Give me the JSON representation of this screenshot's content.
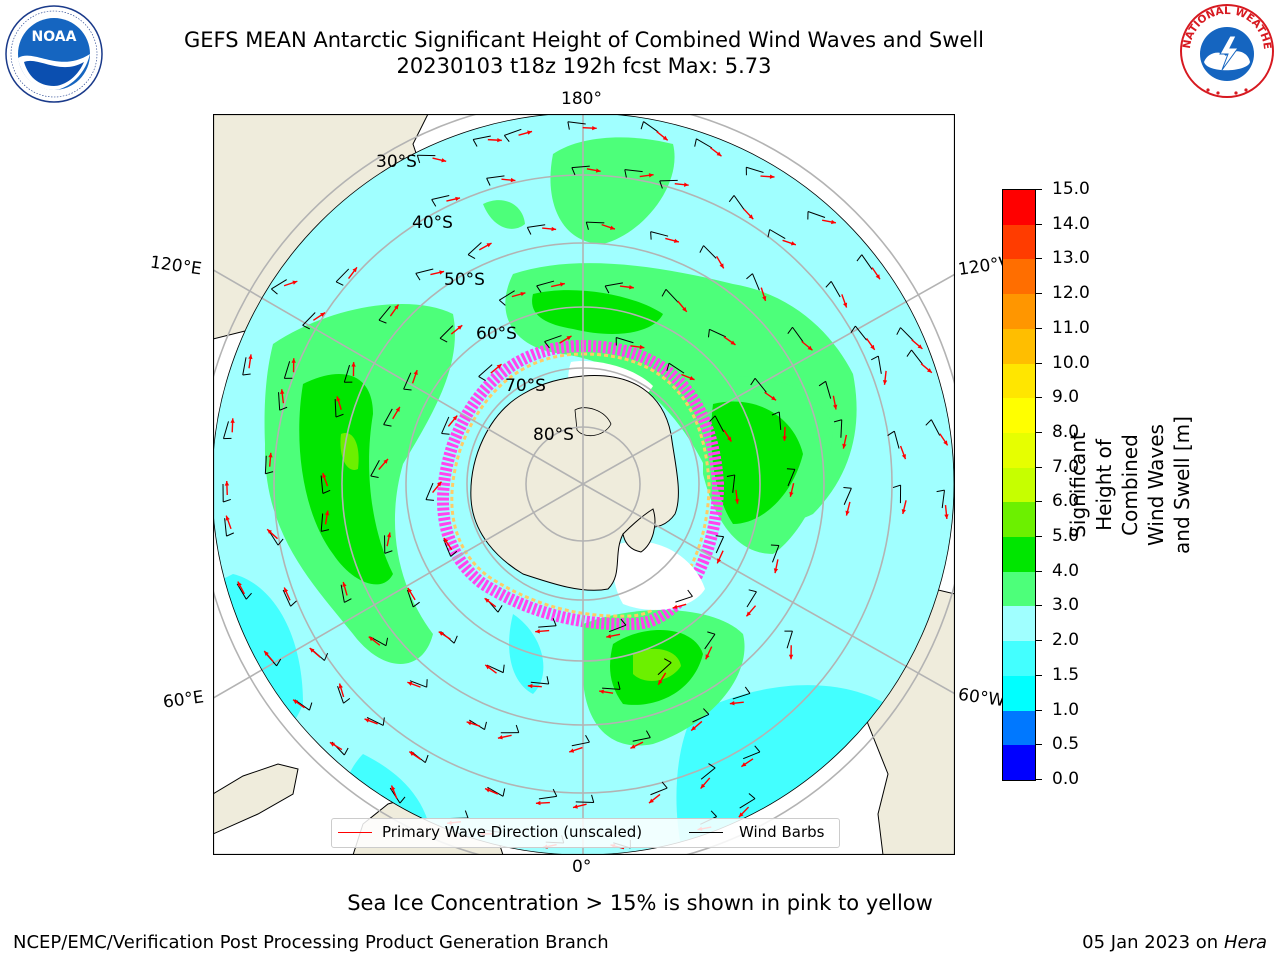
{
  "title": {
    "line1": "GEFS MEAN Antarctic Significant Height of Combined Wind Waves and Swell",
    "line2": "20230103 t18z 192h fcst   Max: 5.73"
  },
  "map": {
    "projection": "south polar stereographic",
    "longitude_labels": {
      "top": "180°",
      "bottom": "0°",
      "upper_left": "120°E",
      "upper_right": "120°W",
      "lower_left": "60°E",
      "lower_right": "60°W"
    },
    "latitude_labels": [
      "30°S",
      "40°S",
      "50°S",
      "60°S",
      "70°S",
      "80°S"
    ],
    "legend": {
      "wave_direction": "Primary Wave Direction (unscaled)",
      "wind_barbs": "Wind Barbs"
    },
    "colors": {
      "land": "#efecdc",
      "graticule": "#b3b3b3",
      "wave_arrow": "#ff0000",
      "wind_barb": "#000000"
    }
  },
  "colorbar": {
    "label_line1": "Significant Height of Combined",
    "label_line2": "Wind Waves and Swell [m]",
    "levels": [
      "0.0",
      "0.5",
      "1.0",
      "1.5",
      "2.0",
      "3.0",
      "4.0",
      "5.0",
      "6.0",
      "7.0",
      "8.0",
      "9.0",
      "10.0",
      "11.0",
      "12.0",
      "13.0",
      "14.0",
      "15.0"
    ],
    "colors": [
      "#0000ff",
      "#0078ff",
      "#00ffff",
      "#43ffff",
      "#a0ffff",
      "#4dff7a",
      "#00e600",
      "#6cf000",
      "#c6ff00",
      "#e6ff00",
      "#ffff00",
      "#ffe600",
      "#ffbe00",
      "#ff9600",
      "#ff6e00",
      "#ff3c00",
      "#ff0000"
    ]
  },
  "caption": "Sea Ice Concentration > 15% is shown in pink to yellow",
  "footer": {
    "left": "NCEP/EMC/Verification Post Processing Product Generation Branch",
    "date": "05 Jan 2023 on ",
    "host": "Hera"
  },
  "logos": {
    "noaa_text": "NOAA",
    "nws_text": "NATIONAL WEATHER SERVICE"
  }
}
